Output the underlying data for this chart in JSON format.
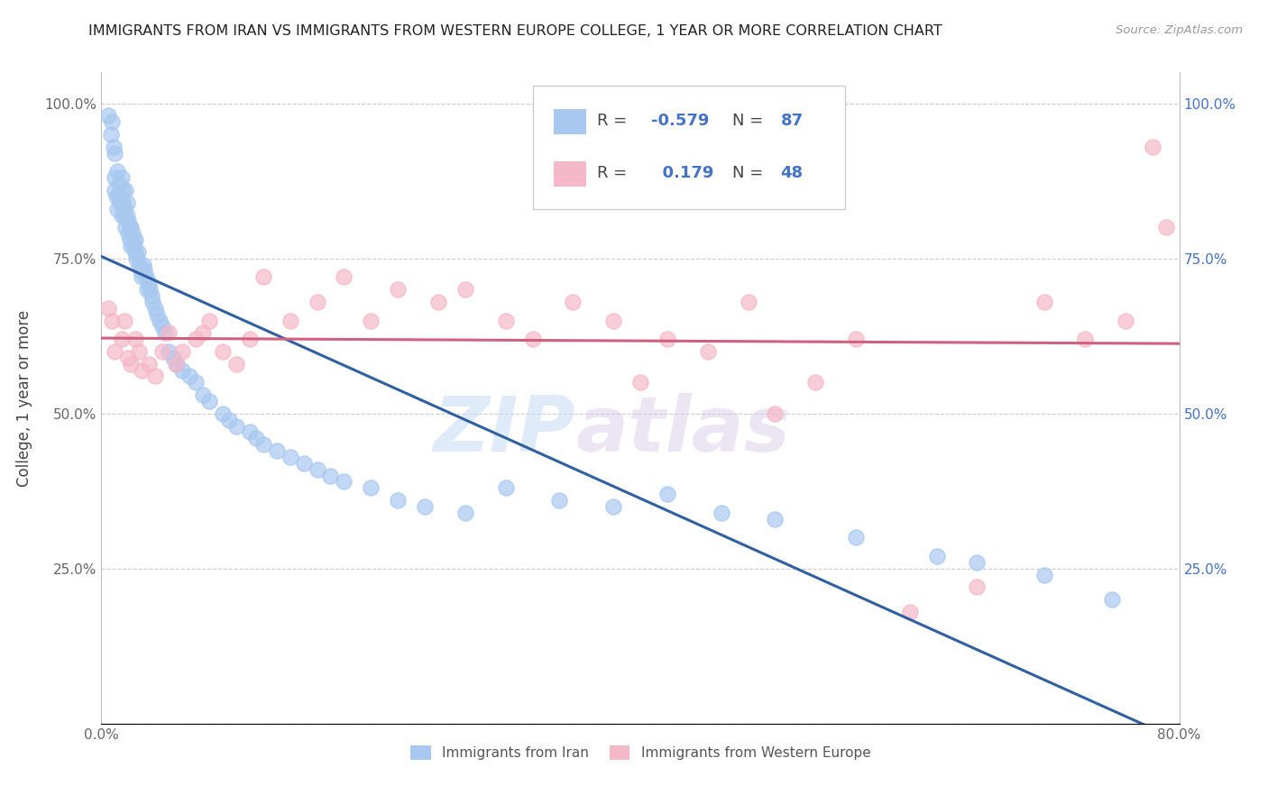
{
  "title": "IMMIGRANTS FROM IRAN VS IMMIGRANTS FROM WESTERN EUROPE COLLEGE, 1 YEAR OR MORE CORRELATION CHART",
  "source": "Source: ZipAtlas.com",
  "ylabel": "College, 1 year or more",
  "x_min": 0.0,
  "x_max": 0.8,
  "y_min": 0.0,
  "y_max": 1.05,
  "legend_iran_R": "-0.579",
  "legend_iran_N": "87",
  "legend_we_R": "0.179",
  "legend_we_N": "48",
  "iran_color": "#A8C8F0",
  "we_color": "#F5B8C8",
  "iran_line_color": "#3060A0",
  "we_line_color": "#D06080",
  "watermark_zip": "ZIP",
  "watermark_atlas": "atlas",
  "iran_x": [
    0.005,
    0.007,
    0.008,
    0.009,
    0.01,
    0.01,
    0.01,
    0.011,
    0.012,
    0.012,
    0.013,
    0.013,
    0.014,
    0.015,
    0.015,
    0.016,
    0.016,
    0.017,
    0.017,
    0.018,
    0.018,
    0.019,
    0.019,
    0.02,
    0.02,
    0.021,
    0.021,
    0.022,
    0.022,
    0.023,
    0.024,
    0.024,
    0.025,
    0.025,
    0.026,
    0.027,
    0.028,
    0.029,
    0.03,
    0.031,
    0.032,
    0.033,
    0.034,
    0.035,
    0.036,
    0.037,
    0.038,
    0.04,
    0.041,
    0.043,
    0.045,
    0.047,
    0.05,
    0.053,
    0.056,
    0.06,
    0.065,
    0.07,
    0.075,
    0.08,
    0.09,
    0.095,
    0.1,
    0.11,
    0.115,
    0.12,
    0.13,
    0.14,
    0.15,
    0.16,
    0.17,
    0.18,
    0.2,
    0.22,
    0.24,
    0.27,
    0.3,
    0.34,
    0.38,
    0.42,
    0.46,
    0.5,
    0.56,
    0.62,
    0.65,
    0.7,
    0.75
  ],
  "iran_y": [
    0.98,
    0.95,
    0.97,
    0.93,
    0.92,
    0.88,
    0.86,
    0.85,
    0.83,
    0.89,
    0.87,
    0.85,
    0.84,
    0.82,
    0.88,
    0.86,
    0.84,
    0.83,
    0.82,
    0.86,
    0.8,
    0.84,
    0.82,
    0.81,
    0.79,
    0.8,
    0.78,
    0.77,
    0.8,
    0.79,
    0.77,
    0.78,
    0.76,
    0.78,
    0.75,
    0.76,
    0.74,
    0.73,
    0.72,
    0.74,
    0.73,
    0.72,
    0.7,
    0.71,
    0.7,
    0.69,
    0.68,
    0.67,
    0.66,
    0.65,
    0.64,
    0.63,
    0.6,
    0.59,
    0.58,
    0.57,
    0.56,
    0.55,
    0.53,
    0.52,
    0.5,
    0.49,
    0.48,
    0.47,
    0.46,
    0.45,
    0.44,
    0.43,
    0.42,
    0.41,
    0.4,
    0.39,
    0.38,
    0.36,
    0.35,
    0.34,
    0.38,
    0.36,
    0.35,
    0.37,
    0.34,
    0.33,
    0.3,
    0.27,
    0.26,
    0.24,
    0.2
  ],
  "we_x": [
    0.005,
    0.008,
    0.01,
    0.015,
    0.017,
    0.02,
    0.022,
    0.025,
    0.028,
    0.03,
    0.035,
    0.04,
    0.045,
    0.05,
    0.055,
    0.06,
    0.07,
    0.075,
    0.08,
    0.09,
    0.1,
    0.11,
    0.12,
    0.14,
    0.16,
    0.18,
    0.2,
    0.22,
    0.25,
    0.27,
    0.3,
    0.32,
    0.35,
    0.38,
    0.4,
    0.42,
    0.45,
    0.48,
    0.5,
    0.53,
    0.56,
    0.6,
    0.65,
    0.7,
    0.73,
    0.76,
    0.78,
    0.79
  ],
  "we_y": [
    0.67,
    0.65,
    0.6,
    0.62,
    0.65,
    0.59,
    0.58,
    0.62,
    0.6,
    0.57,
    0.58,
    0.56,
    0.6,
    0.63,
    0.58,
    0.6,
    0.62,
    0.63,
    0.65,
    0.6,
    0.58,
    0.62,
    0.72,
    0.65,
    0.68,
    0.72,
    0.65,
    0.7,
    0.68,
    0.7,
    0.65,
    0.62,
    0.68,
    0.65,
    0.55,
    0.62,
    0.6,
    0.68,
    0.5,
    0.55,
    0.62,
    0.18,
    0.22,
    0.68,
    0.62,
    0.65,
    0.93,
    0.8
  ]
}
